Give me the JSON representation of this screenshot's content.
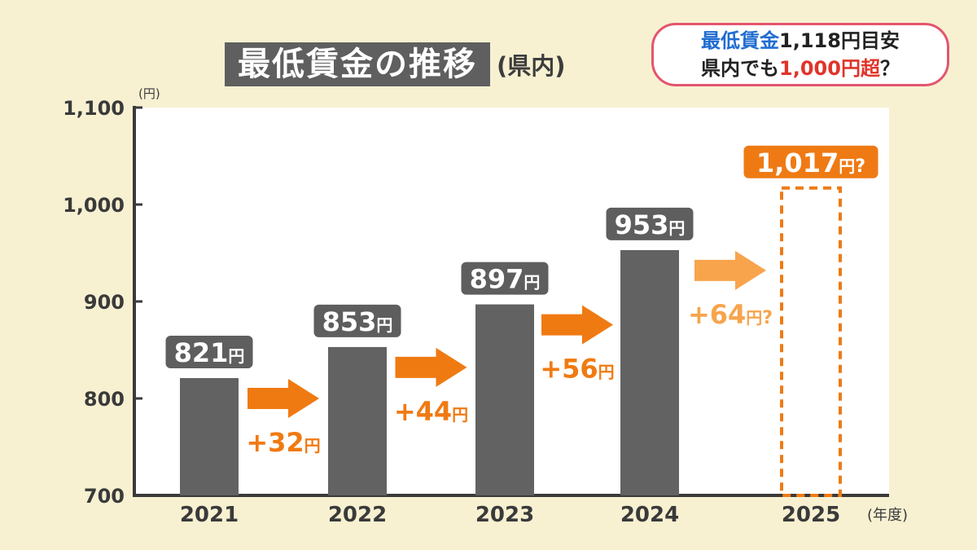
{
  "title": {
    "main": "最低賃金の推移",
    "sub": "(県内)"
  },
  "caption": {
    "line1_highlight": "最低賃金",
    "line1_rest": "1,118円目安",
    "line2_start": "県内でも",
    "line2_highlight": "1,000円超",
    "line2_end": "？"
  },
  "colors": {
    "bar": "#626262",
    "arrow": "#f07a12",
    "arrow_projected": "#f7a44d",
    "projected_outline": "#ee7b16",
    "value_label_bg": "#5e5e5e",
    "projected_label_bg": "#ef7a14",
    "plot_bg": "#ffffff",
    "page_bg": "#f7f1d2"
  },
  "chart_data": {
    "type": "bar",
    "y_unit": "(円)",
    "x_unit": "(年度)",
    "ylim": [
      700,
      1100
    ],
    "y_ticks": [
      {
        "value": 700,
        "label": "700"
      },
      {
        "value": 800,
        "label": "800"
      },
      {
        "value": 900,
        "label": "900"
      },
      {
        "value": 1000,
        "label": "1,000"
      },
      {
        "value": 1100,
        "label": "1,100"
      }
    ],
    "categories": [
      "2021",
      "2022",
      "2023",
      "2024",
      "2025"
    ],
    "values": [
      821,
      853,
      897,
      953,
      1017
    ],
    "projected": [
      false,
      false,
      false,
      false,
      true
    ],
    "value_labels": [
      {
        "num": "821",
        "unit": "円",
        "suffix": ""
      },
      {
        "num": "853",
        "unit": "円",
        "suffix": ""
      },
      {
        "num": "897",
        "unit": "円",
        "suffix": ""
      },
      {
        "num": "953",
        "unit": "円",
        "suffix": ""
      },
      {
        "num": "1,017",
        "unit": "円",
        "suffix": "?"
      }
    ],
    "increments": [
      {
        "num": "+32",
        "unit": "円",
        "suffix": "",
        "projected": false
      },
      {
        "num": "+44",
        "unit": "円",
        "suffix": "",
        "projected": false
      },
      {
        "num": "+56",
        "unit": "円",
        "suffix": "",
        "projected": false
      },
      {
        "num": "+64",
        "unit": "円",
        "suffix": "?",
        "projected": true
      }
    ],
    "grid": false
  }
}
